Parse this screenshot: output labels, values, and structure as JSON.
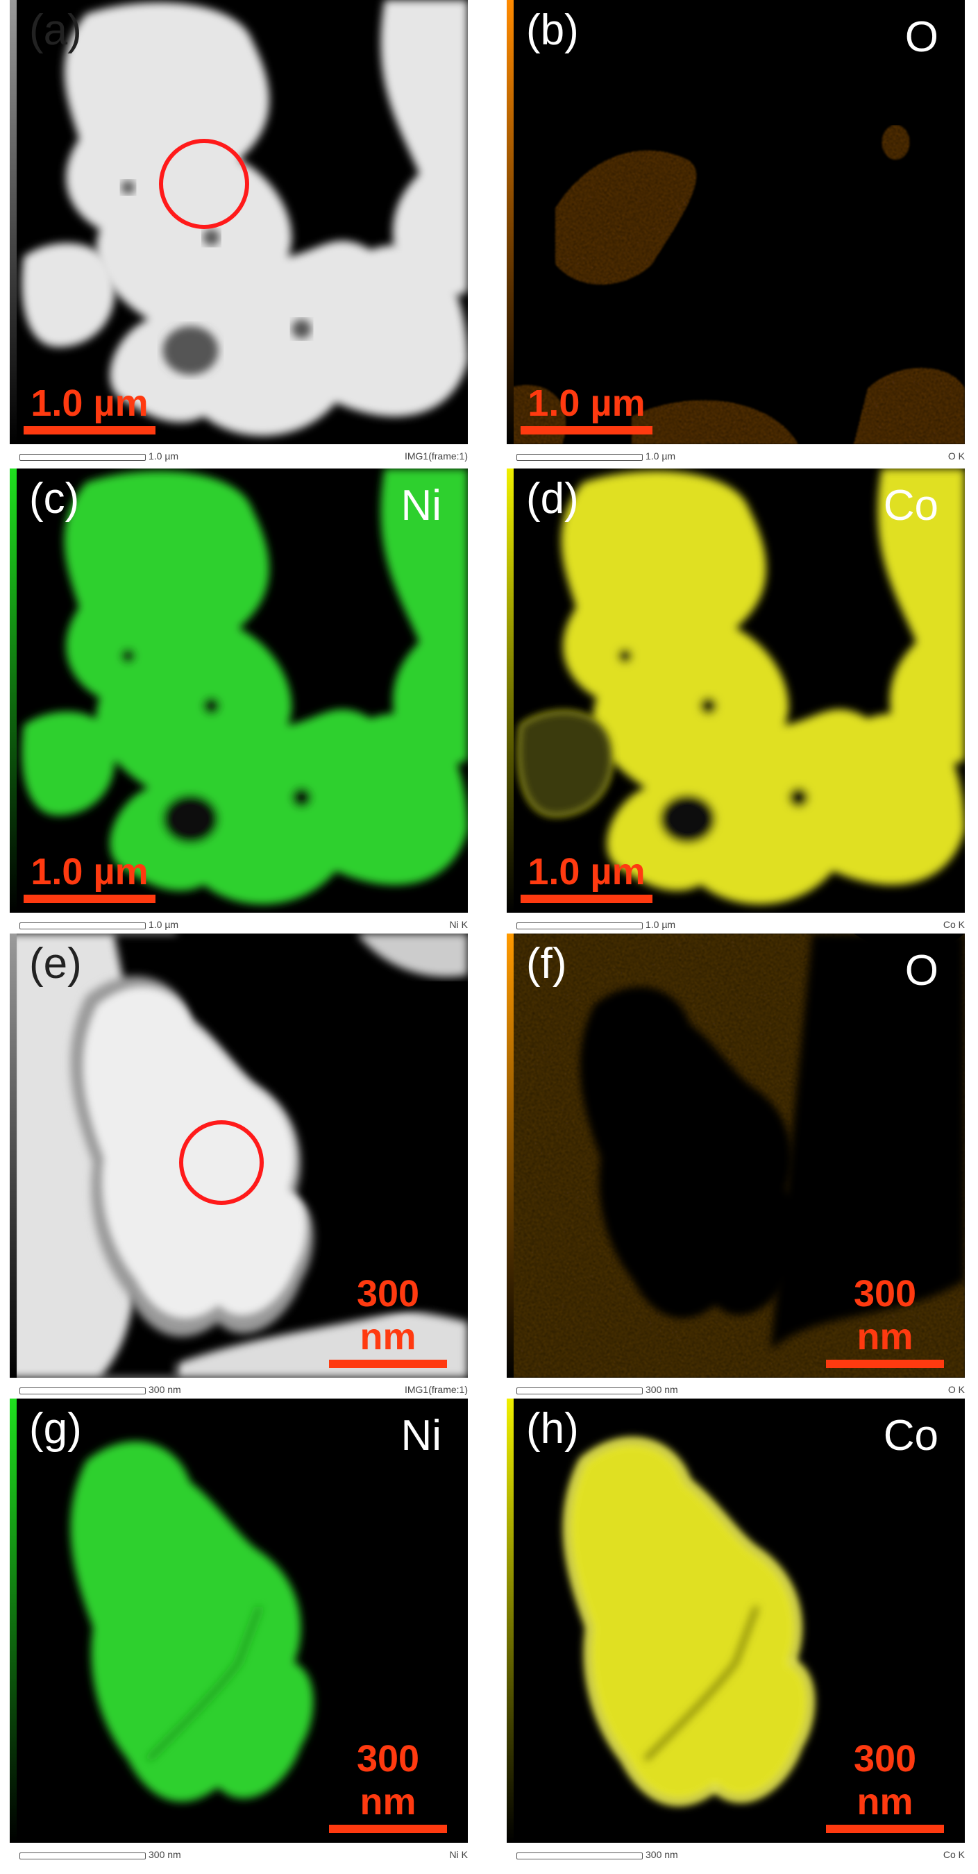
{
  "panels": [
    {
      "label": "(a)",
      "element": "",
      "scale_text": "1.0 µm",
      "footer_scale": "1.0 µm",
      "footer_tag": "IMG1(frame:1)",
      "colorbar": "#9a9a9a",
      "marker": "red-circle"
    },
    {
      "label": "(b)",
      "element": "O",
      "scale_text": "1.0 µm",
      "footer_scale": "1.0 µm",
      "footer_tag": "O K",
      "colorbar": "#ff8a00"
    },
    {
      "label": "(c)",
      "element": "Ni",
      "scale_text": "1.0 µm",
      "footer_scale": "1.0 µm",
      "footer_tag": "Ni K",
      "colorbar": "#1fe01f"
    },
    {
      "label": "(d)",
      "element": "Co",
      "scale_text": "1.0 µm",
      "footer_scale": "1.0 µm",
      "footer_tag": "Co K",
      "colorbar": "#f0f000"
    },
    {
      "label": "(e)",
      "element": "",
      "scale_text": "300 nm",
      "footer_scale": "300 nm",
      "footer_tag": "IMG1(frame:1)",
      "colorbar": "#9a9a9a",
      "marker": "red-circle"
    },
    {
      "label": "(f)",
      "element": "O",
      "scale_text": "300 nm",
      "footer_scale": "300 nm",
      "footer_tag": "O K",
      "colorbar": "#ff9a00"
    },
    {
      "label": "(g)",
      "element": "Ni",
      "scale_text": "300 nm",
      "footer_scale": "300 nm",
      "footer_tag": "Ni K",
      "colorbar": "#1fe01f"
    },
    {
      "label": "(h)",
      "element": "Co",
      "scale_text": "300 nm",
      "footer_scale": "300 nm",
      "footer_tag": "Co K",
      "colorbar": "#f0f000"
    }
  ],
  "colors": {
    "scale_bar": "#ff3a10",
    "marker": "#ff1a1a",
    "oxygen": "#d97a10",
    "nickel": "#2ed02e",
    "cobalt": "#e0e020",
    "haadf": "#e8e8e8"
  }
}
